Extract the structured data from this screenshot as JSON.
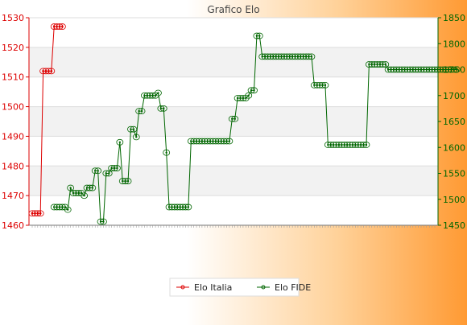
{
  "chart_data": {
    "type": "line",
    "title": "Grafico Elo",
    "xlabel": "",
    "ylabel": "",
    "grid": true,
    "legend_position": "bottom-center",
    "axes": {
      "left": {
        "ylim": [
          1460,
          1530
        ],
        "ticks": [
          1460,
          1470,
          1480,
          1490,
          1500,
          1510,
          1520,
          1530
        ],
        "color": "#dd0000"
      },
      "right": {
        "ylim": [
          1450,
          1850
        ],
        "ticks": [
          1450,
          1500,
          1550,
          1600,
          1650,
          1700,
          1750,
          1800,
          1850
        ],
        "color": "#006600"
      }
    },
    "series": [
      {
        "name": "Elo Italia",
        "axis": "left",
        "color": "#dd0000",
        "marker": "diamond",
        "values": [
          1464,
          1464,
          1464,
          1464,
          1512,
          1512,
          1512,
          1512,
          1527,
          1527,
          1527,
          1527
        ]
      },
      {
        "name": "Elo FIDE",
        "axis": "right",
        "color": "#006600",
        "marker": "circle",
        "values": [
          1485,
          1485,
          1485,
          1485,
          1485,
          1480,
          1522,
          1512,
          1512,
          1512,
          1512,
          1507,
          1522,
          1522,
          1522,
          1555,
          1555,
          1457,
          1457,
          1550,
          1550,
          1560,
          1560,
          1560,
          1610,
          1535,
          1535,
          1535,
          1635,
          1635,
          1620,
          1670,
          1670,
          1700,
          1700,
          1700,
          1700,
          1700,
          1705,
          1675,
          1675,
          1590,
          1485,
          1485,
          1485,
          1485,
          1485,
          1485,
          1485,
          1485,
          1612,
          1612,
          1612,
          1612,
          1612,
          1612,
          1612,
          1612,
          1612,
          1612,
          1612,
          1612,
          1612,
          1612,
          1612,
          1655,
          1655,
          1695,
          1695,
          1695,
          1695,
          1700,
          1710,
          1710,
          1815,
          1815,
          1775,
          1775,
          1775,
          1775,
          1775,
          1775,
          1775,
          1775,
          1775,
          1775,
          1775,
          1775,
          1775,
          1775,
          1775,
          1775,
          1775,
          1775,
          1775,
          1720,
          1720,
          1720,
          1720,
          1720,
          1605,
          1605,
          1605,
          1605,
          1605,
          1605,
          1605,
          1605,
          1605,
          1605,
          1605,
          1605,
          1605,
          1605,
          1605,
          1760,
          1760,
          1760,
          1760,
          1760,
          1760,
          1760,
          1750,
          1750,
          1750,
          1750,
          1750,
          1750,
          1750,
          1750,
          1750,
          1750,
          1750,
          1750,
          1750,
          1750,
          1750,
          1750,
          1750,
          1750,
          1750,
          1750,
          1750,
          1750,
          1750,
          1750,
          1750,
          1750
        ]
      }
    ]
  }
}
